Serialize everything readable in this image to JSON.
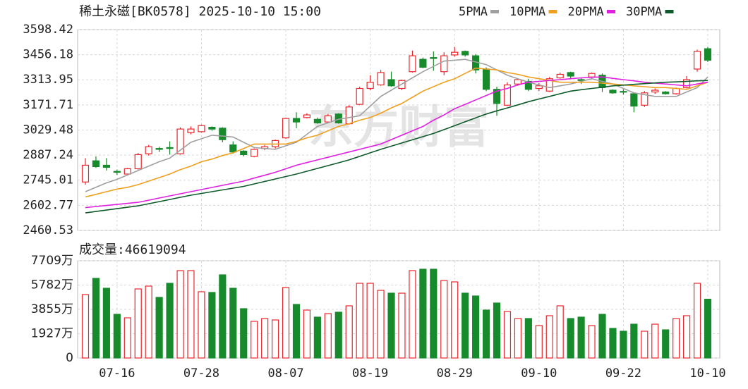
{
  "chart_data": [
    {
      "type": "candlestick",
      "title": "稀土永磁[BK0578] 2025-10-10 15:00",
      "watermark": "东方财富",
      "categories": [
        null,
        null,
        null,
        "07-16",
        null,
        null,
        null,
        null,
        null,
        null,
        null,
        "07-28",
        null,
        null,
        null,
        null,
        null,
        null,
        null,
        "08-07",
        null,
        null,
        null,
        null,
        null,
        null,
        null,
        "08-19",
        null,
        null,
        null,
        null,
        null,
        null,
        null,
        "08-29",
        null,
        null,
        null,
        null,
        null,
        null,
        null,
        "09-10",
        null,
        null,
        null,
        null,
        null,
        null,
        null,
        "09-22",
        null,
        null,
        null,
        null,
        null,
        null,
        null,
        "10-10"
      ],
      "open": [
        2735,
        2855,
        2830,
        2795,
        2780,
        2810,
        2895,
        2925,
        2930,
        2895,
        3015,
        3020,
        3045,
        3040,
        2945,
        2910,
        2880,
        2925,
        2935,
        2985,
        3095,
        3100,
        3090,
        3075,
        3120,
        3065,
        3175,
        3265,
        3285,
        3315,
        3265,
        3360,
        3430,
        3440,
        3360,
        3455,
        3475,
        3450,
        3375,
        3260,
        3170,
        3290,
        3305,
        3265,
        3250,
        3325,
        3355,
        3315,
        3330,
        3340,
        3255,
        3248,
        3235,
        3170,
        3245,
        3245,
        3235,
        3270,
        3375,
        3490
      ],
      "high": [
        2870,
        2880,
        2870,
        2805,
        2815,
        2900,
        2945,
        2935,
        2965,
        3045,
        3050,
        3060,
        3050,
        3045,
        2965,
        2915,
        2925,
        2945,
        2975,
        3100,
        3130,
        3125,
        3100,
        3120,
        3125,
        3170,
        3275,
        3340,
        3370,
        3360,
        3315,
        3480,
        3440,
        3475,
        3470,
        3500,
        3480,
        3460,
        3385,
        3275,
        3300,
        3320,
        3320,
        3295,
        3330,
        3355,
        3360,
        3325,
        3355,
        3350,
        3260,
        3260,
        3240,
        3250,
        3265,
        3250,
        3270,
        3335,
        3485,
        3500
      ],
      "low": [
        2720,
        2815,
        2800,
        2775,
        2775,
        2805,
        2885,
        2905,
        2890,
        2890,
        3005,
        3015,
        3025,
        2960,
        2895,
        2880,
        2875,
        2915,
        2925,
        2980,
        3040,
        3095,
        3065,
        3070,
        3065,
        3060,
        3170,
        3255,
        3280,
        3275,
        3255,
        3355,
        3380,
        3365,
        3340,
        3445,
        3445,
        3350,
        3250,
        3110,
        3165,
        3280,
        3250,
        3250,
        3245,
        3320,
        3320,
        3290,
        3320,
        3245,
        3235,
        3230,
        3130,
        3160,
        3235,
        3230,
        3230,
        3265,
        3360,
        3415
      ],
      "close": [
        2830,
        2822,
        2818,
        2790,
        2810,
        2890,
        2935,
        2920,
        2925,
        3035,
        3035,
        3055,
        3035,
        2975,
        2905,
        2890,
        2920,
        2935,
        2970,
        3095,
        3075,
        3115,
        3070,
        3110,
        3070,
        3160,
        3265,
        3300,
        3355,
        3280,
        3310,
        3450,
        3385,
        3435,
        3450,
        3470,
        3455,
        3370,
        3260,
        3180,
        3285,
        3315,
        3260,
        3280,
        3320,
        3345,
        3335,
        3310,
        3350,
        3270,
        3240,
        3244,
        3165,
        3240,
        3255,
        3235,
        3265,
        3315,
        3475,
        3425
      ],
      "up_color": "#e8262c",
      "down_color": "#178a2c",
      "series": [
        {
          "name": "5PMA",
          "color": "#a0a0a0",
          "values": [
            2680,
            2705,
            2730,
            2750,
            2775,
            2800,
            2825,
            2850,
            2870,
            2915,
            2960,
            2980,
            3000,
            2995,
            2990,
            2960,
            2930,
            2925,
            2920,
            2940,
            2960,
            3005,
            3050,
            3070,
            3090,
            3100,
            3110,
            3165,
            3220,
            3255,
            3290,
            3325,
            3360,
            3390,
            3420,
            3425,
            3430,
            3415,
            3400,
            3370,
            3340,
            3320,
            3300,
            3285,
            3270,
            3280,
            3290,
            3305,
            3320,
            3305,
            3290,
            3265,
            3240,
            3230,
            3220,
            3220,
            3220,
            3245,
            3270,
            3330
          ]
        },
        {
          "name": "10PMA",
          "color": "#f0a020",
          "values": [
            2650,
            2665,
            2680,
            2695,
            2705,
            2720,
            2740,
            2760,
            2780,
            2805,
            2825,
            2850,
            2865,
            2885,
            2900,
            2925,
            2950,
            2950,
            2950,
            2950,
            2965,
            2985,
            3000,
            3025,
            3050,
            3065,
            3085,
            3100,
            3125,
            3155,
            3180,
            3215,
            3250,
            3275,
            3300,
            3320,
            3350,
            3380,
            3375,
            3370,
            3355,
            3345,
            3330,
            3320,
            3310,
            3300,
            3300,
            3300,
            3300,
            3295,
            3290,
            3285,
            3280,
            3275,
            3270,
            3270,
            3265,
            3260,
            3280,
            3300
          ]
        },
        {
          "name": "20PMA",
          "color": "#e020e0",
          "values": [
            2590,
            2596,
            2602,
            2608,
            2614,
            2620,
            2632,
            2644,
            2656,
            2668,
            2680,
            2692,
            2704,
            2716,
            2728,
            2740,
            2757,
            2773,
            2790,
            2810,
            2830,
            2845,
            2860,
            2875,
            2890,
            2905,
            2920,
            2935,
            2950,
            2975,
            3000,
            3025,
            3050,
            3085,
            3115,
            3150,
            3175,
            3200,
            3225,
            3250,
            3265,
            3285,
            3300,
            3305,
            3310,
            3315,
            3320,
            3325,
            3328,
            3330,
            3322,
            3315,
            3308,
            3300,
            3295,
            3290,
            3285,
            3280,
            3290,
            3300
          ]
        },
        {
          "name": "30PMA",
          "color": "#0f5a2a",
          "values": [
            2560,
            2568,
            2576,
            2584,
            2592,
            2600,
            2612,
            2624,
            2636,
            2648,
            2660,
            2670,
            2680,
            2690,
            2700,
            2710,
            2724,
            2738,
            2752,
            2766,
            2780,
            2796,
            2812,
            2828,
            2844,
            2860,
            2880,
            2900,
            2920,
            2938,
            2956,
            2974,
            2992,
            3010,
            3032,
            3054,
            3076,
            3098,
            3120,
            3138,
            3155,
            3172,
            3190,
            3205,
            3220,
            3235,
            3250,
            3258,
            3265,
            3272,
            3280,
            3284,
            3288,
            3292,
            3296,
            3300,
            3302,
            3305,
            3308,
            3310
          ]
        }
      ],
      "ylim": [
        2460.53,
        3598.42
      ],
      "yticks": [
        2460.53,
        2602.77,
        2745.01,
        2887.24,
        3029.48,
        3171.71,
        3313.95,
        3456.18,
        3598.42
      ],
      "grid": true
    },
    {
      "type": "bar",
      "title": "成交量:",
      "values": [
        50270000,
        63120000,
        55300000,
        34630000,
        31840000,
        54740000,
        56980000,
        48040000,
        59210000,
        69270000,
        69270000,
        52510000,
        51950000,
        65910000,
        55300000,
        39100000,
        29050000,
        31280000,
        30160000,
        55860000,
        42450000,
        37980000,
        32400000,
        35190000,
        36310000,
        41340000,
        59210000,
        59210000,
        53630000,
        51390000,
        51390000,
        69270000,
        70380000,
        70380000,
        61450000,
        60330000,
        51390000,
        49160000,
        37980000,
        43570000,
        36870000,
        31280000,
        31280000,
        25700000,
        33520000,
        41340000,
        31280000,
        32400000,
        25700000,
        34630000,
        23460000,
        21230000,
        26810000,
        21230000,
        26810000,
        22340000,
        31280000,
        33520000,
        59210000,
        46619094
      ],
      "ylim": [
        0,
        77090000
      ],
      "yticks": [
        0,
        {
          "value": 19270000,
          "label": "1927万"
        },
        {
          "value": 38550000,
          "label": "3855万"
        },
        {
          "value": 57820000,
          "label": "5782万"
        },
        {
          "value": 77090000,
          "label": "7709万"
        }
      ],
      "grid": true
    }
  ]
}
